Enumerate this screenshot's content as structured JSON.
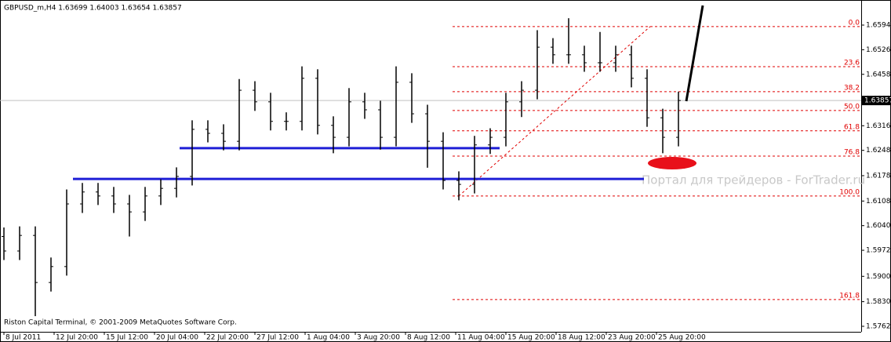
{
  "chart_data": {
    "type": "ohlc",
    "title": "GBPUSD_m,H4  1.63699 1.64003 1.63654 1.63857",
    "footer": "Riston Capital Terminal, © 2001-2009 MetaQuotes Software Corp.",
    "watermark": "Портал для трейдеров - ForTrader.ru",
    "color": "#000000",
    "x": [
      0,
      5,
      10,
      15,
      20,
      25,
      30,
      35,
      40,
      45,
      50,
      55,
      60,
      65,
      70,
      75,
      80,
      85,
      90,
      95,
      100,
      105,
      110,
      115,
      120,
      125,
      130,
      135,
      140,
      145,
      150,
      155,
      160,
      165,
      170,
      175,
      180,
      185,
      190,
      195,
      200,
      205,
      210,
      215
    ],
    "open": [
      1.601,
      1.597,
      1.6013,
      1.5883,
      1.5927,
      1.61,
      1.6133,
      1.6122,
      1.61,
      1.6078,
      1.6122,
      1.6143,
      1.6176,
      1.6306,
      1.6295,
      1.6273,
      1.6414,
      1.6382,
      1.6328,
      1.6328,
      1.6447,
      1.6317,
      1.6284,
      1.6382,
      1.636,
      1.6284,
      1.6436,
      1.6349,
      1.6273,
      1.6165,
      1.6154,
      1.6263,
      1.6284,
      1.6382,
      1.6414,
      1.6533,
      1.6512,
      1.6512,
      1.649,
      1.649,
      1.6512,
      1.6447,
      1.6338,
      1.6284
    ],
    "high": [
      1.6035,
      1.6038,
      1.6038,
      1.5952,
      1.614,
      1.6158,
      1.6158,
      1.6147,
      1.6125,
      1.6147,
      1.6168,
      1.6201,
      1.6331,
      1.6331,
      1.632,
      1.6445,
      1.6439,
      1.6407,
      1.6353,
      1.648,
      1.6472,
      1.6342,
      1.642,
      1.6407,
      1.6385,
      1.648,
      1.6461,
      1.6374,
      1.6298,
      1.619,
      1.6288,
      1.6309,
      1.6407,
      1.6439,
      1.658,
      1.6558,
      1.6613,
      1.6537,
      1.6575,
      1.6537,
      1.6537,
      1.6472,
      1.6363,
      1.641
    ],
    "low": [
      1.5945,
      1.5945,
      1.579,
      1.5858,
      1.5902,
      1.6075,
      1.6097,
      1.6075,
      1.601,
      1.6053,
      1.6097,
      1.6118,
      1.6151,
      1.627,
      1.6248,
      1.6248,
      1.6357,
      1.6303,
      1.6303,
      1.6303,
      1.6292,
      1.624,
      1.6259,
      1.6335,
      1.625,
      1.6259,
      1.6324,
      1.62,
      1.614,
      1.611,
      1.6129,
      1.6238,
      1.6259,
      1.634,
      1.6389,
      1.6487,
      1.6487,
      1.6465,
      1.6465,
      1.6465,
      1.6422,
      1.6313,
      1.624,
      1.6259
    ],
    "close": [
      1.597,
      1.6013,
      1.5883,
      1.5927,
      1.61,
      1.6133,
      1.6122,
      1.61,
      1.6078,
      1.6122,
      1.6143,
      1.6176,
      1.6306,
      1.6295,
      1.6273,
      1.6414,
      1.6382,
      1.6328,
      1.6328,
      1.6447,
      1.6317,
      1.6284,
      1.6382,
      1.636,
      1.6284,
      1.6436,
      1.6349,
      1.6273,
      1.6165,
      1.6154,
      1.6263,
      1.6284,
      1.6382,
      1.6414,
      1.6533,
      1.6512,
      1.6512,
      1.649,
      1.649,
      1.6512,
      1.6447,
      1.6338,
      1.6284,
      1.63857
    ],
    "xlim": [
      -1.25,
      273.25
    ],
    "xticks": [
      {
        "value": 0,
        "label": "8 Jul 2011"
      },
      {
        "value": 16,
        "label": "12 Jul 20:00"
      },
      {
        "value": 32,
        "label": "15 Jul 12:00"
      },
      {
        "value": 48,
        "label": "20 Jul 04:00"
      },
      {
        "value": 64,
        "label": "22 Jul 20:00"
      },
      {
        "value": 80,
        "label": "27 Jul 12:00"
      },
      {
        "value": 96,
        "label": "1 Aug 04:00"
      },
      {
        "value": 112,
        "label": "3 Aug 20:00"
      },
      {
        "value": 128,
        "label": "8 Aug 12:00"
      },
      {
        "value": 144,
        "label": "11 Aug 04:00"
      },
      {
        "value": 160,
        "label": "15 Aug 20:00"
      },
      {
        "value": 176,
        "label": "18 Aug 12:00"
      },
      {
        "value": 192,
        "label": "23 Aug 20:00"
      },
      {
        "value": 208,
        "label": "25 Aug 20:00"
      }
    ],
    "ylim": [
      1.57468,
      1.66633
    ],
    "yticks": [
      {
        "value": 1.6594,
        "label": "1.65940"
      },
      {
        "value": 1.6526,
        "label": "1.65260"
      },
      {
        "value": 1.6458,
        "label": "1.64580"
      },
      {
        "value": 1.639,
        "label": "1.63900"
      },
      {
        "value": 1.6316,
        "label": "1.63160"
      },
      {
        "value": 1.6248,
        "label": "1.62480"
      },
      {
        "value": 1.6178,
        "label": "1.61780"
      },
      {
        "value": 1.6108,
        "label": "1.61080"
      },
      {
        "value": 1.604,
        "label": "1.60400"
      },
      {
        "value": 1.5972,
        "label": "1.59720"
      },
      {
        "value": 1.59,
        "label": "1.59000"
      },
      {
        "value": 1.583,
        "label": "1.58300"
      },
      {
        "value": 1.5762,
        "label": "1.57620"
      }
    ],
    "current_price": {
      "value": 1.63857,
      "label": "1.63857"
    },
    "fibonacci": {
      "color": "#e00000",
      "start": 143,
      "labels": [
        "0.0",
        "23.6",
        "38.2",
        "50.0",
        "61.8",
        "76.8",
        "100.0",
        "161.8"
      ],
      "prices": [
        1.659,
        1.6479,
        1.641,
        1.6358,
        1.6302,
        1.6232,
        1.6122,
        1.5836
      ]
    },
    "support_lines": {
      "color": "#1f1fd6",
      "prices": [
        1.6254,
        1.6169
      ],
      "from": [
        56,
        22
      ],
      "to": [
        158,
        204
      ]
    }
  }
}
